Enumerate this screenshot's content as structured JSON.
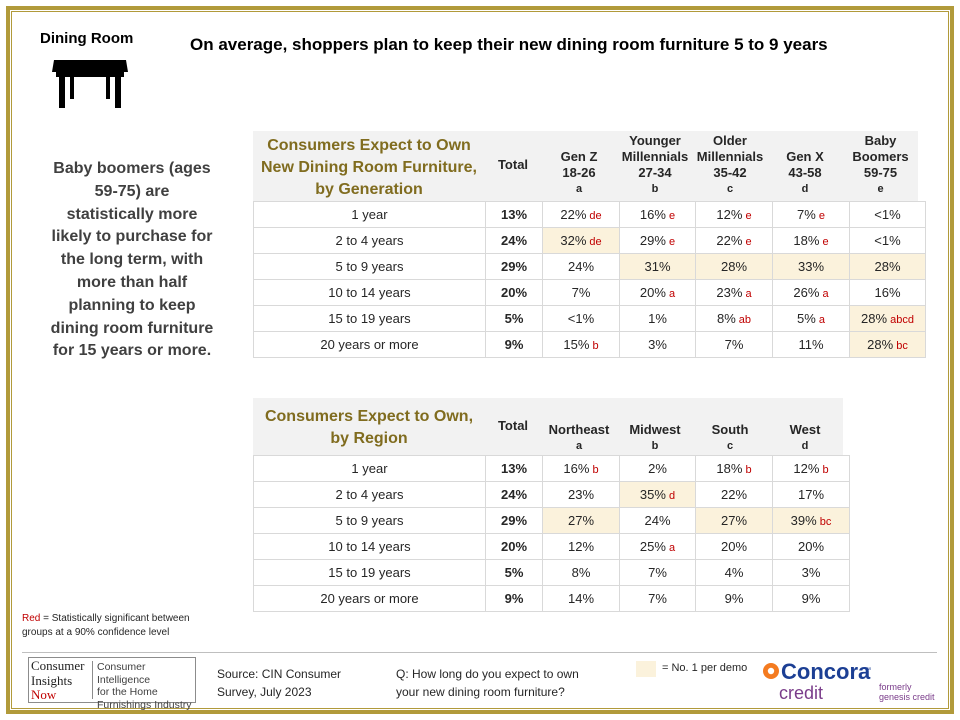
{
  "section_title": "Dining Room",
  "headline": "On average, shoppers plan to keep their new dining room furniture 5 to 9 years",
  "insight": "Baby boomers (ages 59-75) are statistically more likely to purchase for the long term, with more than half planning to keep dining room furniture for 15 years or more.",
  "insight_lines": [
    "Baby boomers (ages",
    "59-75) are",
    "statistically more",
    "likely to purchase for",
    "the long term, with",
    "more than half",
    "planning to keep",
    "dining room furniture",
    "for 15 years or more."
  ],
  "icons": {
    "section": "dining-table-icon"
  },
  "colors": {
    "gold": "#b19a3a",
    "title_gold": "#806c1f",
    "highlight": "#fbf2dc",
    "significance_red": "#c00000",
    "header_bg": "#f2f2f2"
  },
  "generation_table": {
    "title_lines": [
      "Consumers Expect to Own",
      "New Dining Room Furniture,",
      "by Generation"
    ],
    "columns": [
      {
        "lines": [
          "Total"
        ],
        "letter": ""
      },
      {
        "lines": [
          "Gen Z",
          "18-26"
        ],
        "letter": "a"
      },
      {
        "lines": [
          "Younger",
          "Millennials",
          "27-34"
        ],
        "letter": "b"
      },
      {
        "lines": [
          "Older",
          "Millennials",
          "35-42"
        ],
        "letter": "c"
      },
      {
        "lines": [
          "Gen X",
          "43-58"
        ],
        "letter": "d"
      },
      {
        "lines": [
          "Baby",
          "Boomers",
          "59-75"
        ],
        "letter": "e"
      }
    ],
    "rows": [
      {
        "label": "1 year",
        "total": "13%",
        "cells": [
          {
            "v": "22%",
            "s": "de",
            "h": false
          },
          {
            "v": "16%",
            "s": "e",
            "h": false
          },
          {
            "v": "12%",
            "s": "e",
            "h": false
          },
          {
            "v": "7%",
            "s": "e",
            "h": false
          },
          {
            "v": "<1%",
            "s": "",
            "h": false
          }
        ]
      },
      {
        "label": "2 to 4 years",
        "total": "24%",
        "cells": [
          {
            "v": "32%",
            "s": "de",
            "h": true
          },
          {
            "v": "29%",
            "s": "e",
            "h": false
          },
          {
            "v": "22%",
            "s": "e",
            "h": false
          },
          {
            "v": "18%",
            "s": "e",
            "h": false
          },
          {
            "v": "<1%",
            "s": "",
            "h": false
          }
        ]
      },
      {
        "label": "5 to 9 years",
        "total": "29%",
        "cells": [
          {
            "v": "24%",
            "s": "",
            "h": false
          },
          {
            "v": "31%",
            "s": "",
            "h": true
          },
          {
            "v": "28%",
            "s": "",
            "h": true
          },
          {
            "v": "33%",
            "s": "",
            "h": true
          },
          {
            "v": "28%",
            "s": "",
            "h": true
          }
        ]
      },
      {
        "label": "10 to 14 years",
        "total": "20%",
        "cells": [
          {
            "v": "7%",
            "s": "",
            "h": false
          },
          {
            "v": "20%",
            "s": "a",
            "h": false
          },
          {
            "v": "23%",
            "s": "a",
            "h": false
          },
          {
            "v": "26%",
            "s": "a",
            "h": false
          },
          {
            "v": "16%",
            "s": "",
            "h": false
          }
        ]
      },
      {
        "label": "15 to 19 years",
        "total": "5%",
        "cells": [
          {
            "v": "<1%",
            "s": "",
            "h": false
          },
          {
            "v": "1%",
            "s": "",
            "h": false
          },
          {
            "v": "8%",
            "s": "ab",
            "h": false
          },
          {
            "v": "5%",
            "s": "a",
            "h": false
          },
          {
            "v": "28%",
            "s": "abcd",
            "h": true
          }
        ]
      },
      {
        "label": "20 years or more",
        "total": "9%",
        "cells": [
          {
            "v": "15%",
            "s": "b",
            "h": false
          },
          {
            "v": "3%",
            "s": "",
            "h": false
          },
          {
            "v": "7%",
            "s": "",
            "h": false
          },
          {
            "v": "11%",
            "s": "",
            "h": false
          },
          {
            "v": "28%",
            "s": "bc",
            "h": true
          }
        ]
      }
    ]
  },
  "region_table": {
    "title_lines": [
      "Consumers Expect to Own,",
      "by Region"
    ],
    "columns": [
      {
        "lines": [
          "Total"
        ],
        "letter": ""
      },
      {
        "lines": [
          "Northeast"
        ],
        "letter": "a"
      },
      {
        "lines": [
          "Midwest"
        ],
        "letter": "b"
      },
      {
        "lines": [
          "South"
        ],
        "letter": "c"
      },
      {
        "lines": [
          "West"
        ],
        "letter": "d"
      }
    ],
    "rows": [
      {
        "label": "1 year",
        "total": "13%",
        "cells": [
          {
            "v": "16%",
            "s": "b",
            "h": false
          },
          {
            "v": "2%",
            "s": "",
            "h": false
          },
          {
            "v": "18%",
            "s": "b",
            "h": false
          },
          {
            "v": "12%",
            "s": "b",
            "h": false
          }
        ]
      },
      {
        "label": "2 to 4 years",
        "total": "24%",
        "cells": [
          {
            "v": "23%",
            "s": "",
            "h": false
          },
          {
            "v": "35%",
            "s": "d",
            "h": true
          },
          {
            "v": "22%",
            "s": "",
            "h": false
          },
          {
            "v": "17%",
            "s": "",
            "h": false
          }
        ]
      },
      {
        "label": "5 to 9 years",
        "total": "29%",
        "cells": [
          {
            "v": "27%",
            "s": "",
            "h": true
          },
          {
            "v": "24%",
            "s": "",
            "h": false
          },
          {
            "v": "27%",
            "s": "",
            "h": true
          },
          {
            "v": "39%",
            "s": "bc",
            "h": true
          }
        ]
      },
      {
        "label": "10 to 14 years",
        "total": "20%",
        "cells": [
          {
            "v": "12%",
            "s": "",
            "h": false
          },
          {
            "v": "25%",
            "s": "a",
            "h": false
          },
          {
            "v": "20%",
            "s": "",
            "h": false
          },
          {
            "v": "20%",
            "s": "",
            "h": false
          }
        ]
      },
      {
        "label": "15 to 19 years",
        "total": "5%",
        "cells": [
          {
            "v": "8%",
            "s": "",
            "h": false
          },
          {
            "v": "7%",
            "s": "",
            "h": false
          },
          {
            "v": "4%",
            "s": "",
            "h": false
          },
          {
            "v": "3%",
            "s": "",
            "h": false
          }
        ]
      },
      {
        "label": "20 years or more",
        "total": "9%",
        "cells": [
          {
            "v": "14%",
            "s": "",
            "h": false
          },
          {
            "v": "7%",
            "s": "",
            "h": false
          },
          {
            "v": "9%",
            "s": "",
            "h": false
          },
          {
            "v": "9%",
            "s": "",
            "h": false
          }
        ]
      }
    ]
  },
  "significance_legend": {
    "red_word": "Red",
    "text": " = Statistically significant between groups at a 90% confidence level",
    "line1_rest": " = Statistically significant between",
    "line2": "groups at a 90% confidence level"
  },
  "footer": {
    "logo_left_lines": [
      "Consumer",
      "Insights",
      "Now"
    ],
    "logo_right_lines": [
      "Consumer Intelligence",
      "for the Home",
      "Furnishings Industry"
    ],
    "source_lines": [
      "Source:  CIN Consumer",
      "Survey, July 2023"
    ],
    "question_lines": [
      "Q: How long do you expect to own",
      "your new dining room furniture?"
    ],
    "highlight_legend": "= No. 1 per demo",
    "brand_name": "Concora",
    "brand_sub": "credit",
    "brand_tm": "™",
    "formerly_lines": [
      "formerly",
      "genesis credit"
    ]
  }
}
